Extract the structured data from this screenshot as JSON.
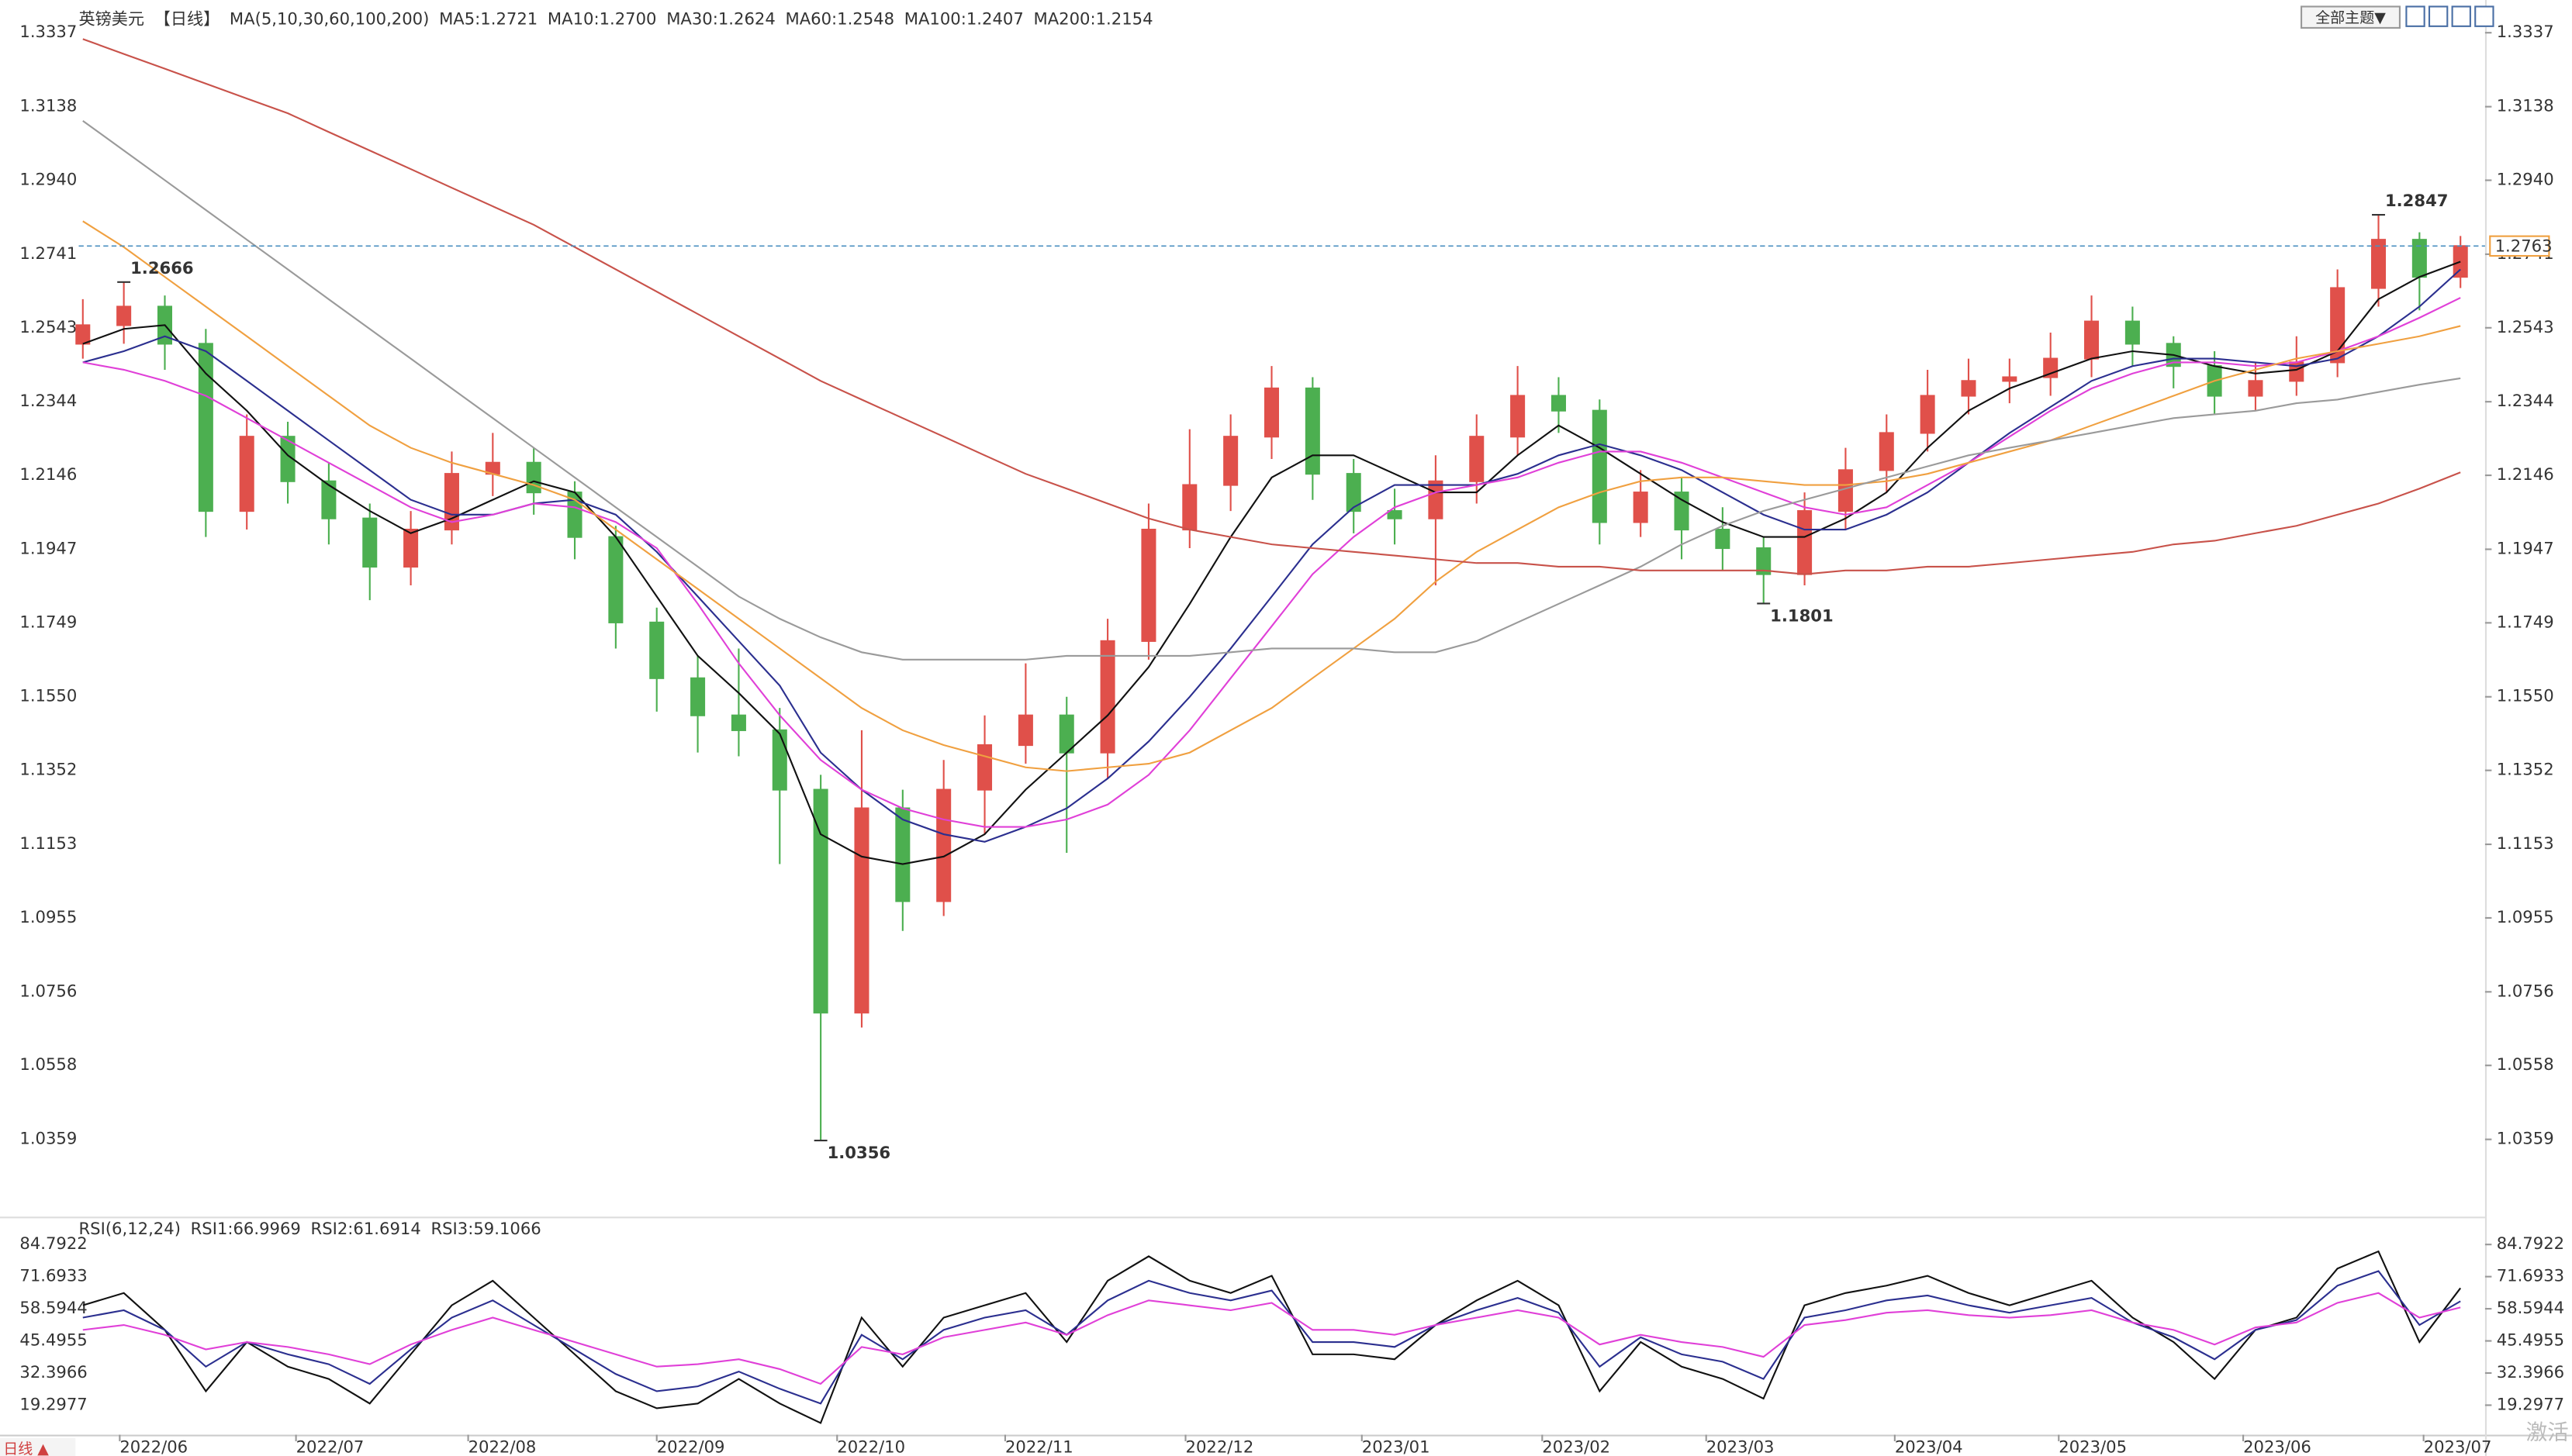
{
  "chart_data": [
    {
      "type": "candlestick",
      "title": "英镑美元",
      "subtitle": "【日线】",
      "indicator": "MA(5,10,30,60,100,200)",
      "x": [
        0,
        1,
        2,
        3,
        4,
        5,
        6,
        7,
        8,
        9,
        10,
        11,
        12,
        13,
        14,
        15,
        16,
        17,
        18,
        19,
        20,
        21,
        22,
        23,
        24,
        25,
        26,
        27,
        28,
        29,
        30,
        31,
        32,
        33,
        34,
        35,
        36,
        37,
        38,
        39,
        40,
        41,
        42,
        43,
        44,
        45,
        46,
        47,
        48,
        49,
        50,
        51,
        52,
        53,
        54,
        55,
        56,
        57,
        58
      ],
      "open": [
        1.25,
        1.255,
        1.26,
        1.25,
        1.205,
        1.225,
        1.213,
        1.203,
        1.19,
        1.2,
        1.215,
        1.218,
        1.21,
        1.198,
        1.175,
        1.16,
        1.15,
        1.146,
        1.13,
        1.07,
        1.125,
        1.1,
        1.13,
        1.142,
        1.15,
        1.14,
        1.17,
        1.2,
        1.212,
        1.225,
        1.238,
        1.215,
        1.205,
        1.203,
        1.213,
        1.225,
        1.236,
        1.232,
        1.202,
        1.21,
        1.2,
        1.195,
        1.188,
        1.205,
        1.216,
        1.226,
        1.236,
        1.24,
        1.241,
        1.246,
        1.256,
        1.25,
        1.244,
        1.236,
        1.24,
        1.245,
        1.265,
        1.278,
        1.268
      ],
      "high": [
        1.262,
        1.2666,
        1.263,
        1.254,
        1.231,
        1.229,
        1.218,
        1.207,
        1.205,
        1.221,
        1.226,
        1.222,
        1.213,
        1.201,
        1.179,
        1.166,
        1.168,
        1.152,
        1.134,
        1.146,
        1.13,
        1.138,
        1.15,
        1.164,
        1.155,
        1.176,
        1.207,
        1.227,
        1.231,
        1.244,
        1.241,
        1.219,
        1.211,
        1.22,
        1.231,
        1.244,
        1.241,
        1.235,
        1.216,
        1.214,
        1.206,
        1.198,
        1.21,
        1.222,
        1.231,
        1.243,
        1.246,
        1.246,
        1.253,
        1.263,
        1.26,
        1.252,
        1.248,
        1.245,
        1.252,
        1.27,
        1.2847,
        1.28,
        1.279
      ],
      "low": [
        1.246,
        1.25,
        1.243,
        1.198,
        1.2,
        1.207,
        1.196,
        1.181,
        1.185,
        1.196,
        1.209,
        1.204,
        1.192,
        1.168,
        1.151,
        1.14,
        1.139,
        1.11,
        1.0356,
        1.066,
        1.092,
        1.096,
        1.118,
        1.137,
        1.113,
        1.133,
        1.165,
        1.195,
        1.205,
        1.219,
        1.208,
        1.199,
        1.196,
        1.185,
        1.207,
        1.22,
        1.226,
        1.196,
        1.198,
        1.192,
        1.189,
        1.1801,
        1.185,
        1.2,
        1.21,
        1.221,
        1.231,
        1.234,
        1.236,
        1.241,
        1.244,
        1.238,
        1.231,
        1.232,
        1.236,
        1.241,
        1.26,
        1.259,
        1.265
      ],
      "close": [
        1.255,
        1.26,
        1.25,
        1.205,
        1.225,
        1.213,
        1.203,
        1.19,
        1.2,
        1.215,
        1.218,
        1.21,
        1.198,
        1.175,
        1.16,
        1.15,
        1.146,
        1.13,
        1.07,
        1.125,
        1.1,
        1.13,
        1.142,
        1.15,
        1.14,
        1.17,
        1.2,
        1.212,
        1.225,
        1.238,
        1.215,
        1.205,
        1.203,
        1.213,
        1.225,
        1.236,
        1.232,
        1.202,
        1.21,
        1.2,
        1.195,
        1.188,
        1.205,
        1.216,
        1.226,
        1.236,
        1.24,
        1.241,
        1.246,
        1.256,
        1.25,
        1.244,
        1.236,
        1.24,
        1.245,
        1.265,
        1.278,
        1.268,
        1.2763
      ],
      "up_color": "#e0504a",
      "down_color": "#4caf50",
      "series": [
        {
          "name": "MA5:1.2721",
          "color": "#111111",
          "values": [
            1.25,
            1.254,
            1.255,
            1.242,
            1.232,
            1.22,
            1.212,
            1.205,
            1.199,
            1.203,
            1.208,
            1.213,
            1.21,
            1.198,
            1.182,
            1.166,
            1.156,
            1.145,
            1.118,
            1.112,
            1.11,
            1.112,
            1.118,
            1.13,
            1.14,
            1.15,
            1.163,
            1.18,
            1.198,
            1.214,
            1.22,
            1.22,
            1.215,
            1.21,
            1.21,
            1.22,
            1.228,
            1.222,
            1.215,
            1.208,
            1.202,
            1.198,
            1.198,
            1.203,
            1.21,
            1.222,
            1.232,
            1.238,
            1.242,
            1.246,
            1.248,
            1.247,
            1.244,
            1.242,
            1.243,
            1.248,
            1.262,
            1.268,
            1.2721
          ]
        },
        {
          "name": "MA10:1.2700",
          "color": "#2b2f8f",
          "values": [
            1.245,
            1.248,
            1.252,
            1.248,
            1.24,
            1.232,
            1.224,
            1.216,
            1.208,
            1.204,
            1.204,
            1.207,
            1.208,
            1.204,
            1.194,
            1.182,
            1.17,
            1.158,
            1.14,
            1.13,
            1.122,
            1.118,
            1.116,
            1.12,
            1.125,
            1.133,
            1.143,
            1.155,
            1.168,
            1.182,
            1.196,
            1.206,
            1.212,
            1.212,
            1.212,
            1.215,
            1.22,
            1.223,
            1.22,
            1.216,
            1.21,
            1.204,
            1.2,
            1.2,
            1.204,
            1.21,
            1.218,
            1.226,
            1.233,
            1.24,
            1.244,
            1.246,
            1.246,
            1.245,
            1.244,
            1.246,
            1.252,
            1.26,
            1.27
          ]
        },
        {
          "name": "MA30:1.2624",
          "color": "#e040d8",
          "values": [
            1.245,
            1.243,
            1.24,
            1.236,
            1.23,
            1.224,
            1.218,
            1.212,
            1.206,
            1.202,
            1.204,
            1.207,
            1.206,
            1.202,
            1.195,
            1.18,
            1.164,
            1.15,
            1.138,
            1.13,
            1.125,
            1.122,
            1.12,
            1.12,
            1.122,
            1.126,
            1.134,
            1.146,
            1.16,
            1.174,
            1.188,
            1.198,
            1.206,
            1.21,
            1.212,
            1.214,
            1.218,
            1.221,
            1.221,
            1.218,
            1.214,
            1.21,
            1.206,
            1.204,
            1.206,
            1.212,
            1.218,
            1.225,
            1.232,
            1.238,
            1.242,
            1.245,
            1.245,
            1.244,
            1.245,
            1.248,
            1.252,
            1.257,
            1.2624
          ]
        },
        {
          "name": "MA60:1.2548",
          "color": "#f0a040",
          "values": [
            1.283,
            1.276,
            1.268,
            1.26,
            1.252,
            1.244,
            1.236,
            1.228,
            1.222,
            1.218,
            1.215,
            1.212,
            1.208,
            1.2,
            1.192,
            1.184,
            1.176,
            1.168,
            1.16,
            1.152,
            1.146,
            1.142,
            1.139,
            1.136,
            1.135,
            1.136,
            1.137,
            1.14,
            1.146,
            1.152,
            1.16,
            1.168,
            1.176,
            1.186,
            1.194,
            1.2,
            1.206,
            1.21,
            1.213,
            1.214,
            1.214,
            1.213,
            1.212,
            1.212,
            1.213,
            1.215,
            1.218,
            1.221,
            1.224,
            1.228,
            1.232,
            1.236,
            1.24,
            1.243,
            1.246,
            1.248,
            1.25,
            1.252,
            1.2548
          ]
        },
        {
          "name": "MA100:1.2407",
          "color": "#9a9a9a",
          "values": [
            1.31,
            1.302,
            1.294,
            1.286,
            1.278,
            1.27,
            1.262,
            1.254,
            1.246,
            1.238,
            1.23,
            1.222,
            1.214,
            1.206,
            1.198,
            1.19,
            1.182,
            1.176,
            1.171,
            1.167,
            1.165,
            1.165,
            1.165,
            1.165,
            1.166,
            1.166,
            1.166,
            1.166,
            1.167,
            1.168,
            1.168,
            1.168,
            1.167,
            1.167,
            1.17,
            1.175,
            1.18,
            1.185,
            1.19,
            1.196,
            1.201,
            1.205,
            1.208,
            1.211,
            1.214,
            1.217,
            1.22,
            1.222,
            1.224,
            1.226,
            1.228,
            1.23,
            1.231,
            1.232,
            1.234,
            1.235,
            1.237,
            1.239,
            1.2407
          ]
        },
        {
          "name": "MA200:1.2154",
          "color": "#c8524a",
          "values": [
            1.332,
            1.328,
            1.324,
            1.32,
            1.316,
            1.312,
            1.307,
            1.302,
            1.297,
            1.292,
            1.287,
            1.282,
            1.276,
            1.27,
            1.264,
            1.258,
            1.252,
            1.246,
            1.24,
            1.235,
            1.23,
            1.225,
            1.22,
            1.215,
            1.211,
            1.207,
            1.203,
            1.2,
            1.198,
            1.196,
            1.195,
            1.194,
            1.193,
            1.192,
            1.191,
            1.191,
            1.19,
            1.19,
            1.189,
            1.189,
            1.189,
            1.189,
            1.188,
            1.189,
            1.189,
            1.19,
            1.19,
            1.191,
            1.192,
            1.193,
            1.194,
            1.196,
            1.197,
            1.199,
            1.201,
            1.204,
            1.207,
            1.211,
            1.2154
          ]
        }
      ],
      "annotations": [
        {
          "x": 1,
          "value": 1.2666,
          "color": "#d04040"
        },
        {
          "x": 18,
          "value": 1.0356,
          "color": "#3f9e3f"
        },
        {
          "x": 41,
          "value": 1.1801,
          "color": "#3f9e3f"
        },
        {
          "x": 56,
          "value": 1.2847,
          "color": "#d04040"
        }
      ],
      "last_price": 1.2763,
      "xlim": [
        -0.1,
        58.6
      ],
      "ylim": [
        1.016,
        1.3403
      ],
      "yticks": [
        1.3337,
        1.3138,
        {
          "value": 1.294,
          "label": "1.2940"
        },
        1.2741,
        1.2543,
        1.2344,
        1.2146,
        1.1947,
        1.1749,
        {
          "value": 1.155,
          "label": "1.1550"
        },
        1.1352,
        1.1153,
        1.0955,
        1.0756,
        1.0558,
        1.0359
      ]
    },
    {
      "type": "line",
      "title": "RSI(6,12,24)",
      "series": [
        {
          "name": "RSI1:66.9969",
          "color": "#111111",
          "values": [
            60,
            65,
            50,
            25,
            45,
            35,
            30,
            20,
            40,
            60,
            70,
            55,
            40,
            25,
            18,
            20,
            30,
            20,
            12,
            55,
            35,
            55,
            60,
            65,
            45,
            70,
            80,
            70,
            65,
            72,
            40,
            40,
            38,
            52,
            62,
            70,
            60,
            25,
            45,
            35,
            30,
            22,
            60,
            65,
            68,
            72,
            65,
            60,
            65,
            70,
            55,
            45,
            30,
            50,
            55,
            75,
            82,
            45,
            66.9969
          ]
        },
        {
          "name": "RSI2:61.6914",
          "color": "#2b2f8f",
          "values": [
            55,
            58,
            50,
            35,
            45,
            40,
            36,
            28,
            42,
            55,
            62,
            52,
            42,
            32,
            25,
            27,
            33,
            26,
            20,
            48,
            38,
            50,
            55,
            58,
            48,
            62,
            70,
            65,
            62,
            66,
            45,
            45,
            43,
            52,
            58,
            63,
            57,
            35,
            47,
            40,
            37,
            30,
            55,
            58,
            62,
            64,
            60,
            57,
            60,
            63,
            53,
            47,
            38,
            50,
            54,
            68,
            74,
            52,
            61.6914
          ]
        },
        {
          "name": "RSI3:59.1066",
          "color": "#e040d8",
          "values": [
            50,
            52,
            48,
            42,
            45,
            43,
            40,
            36,
            44,
            50,
            55,
            50,
            45,
            40,
            35,
            36,
            38,
            34,
            28,
            43,
            40,
            47,
            50,
            53,
            48,
            56,
            62,
            60,
            58,
            61,
            50,
            50,
            48,
            52,
            55,
            58,
            55,
            44,
            48,
            45,
            43,
            39,
            52,
            54,
            57,
            58,
            56,
            55,
            56,
            58,
            53,
            50,
            44,
            51,
            53,
            61,
            65,
            55,
            59.1066
          ]
        }
      ],
      "ylim": [
        7.27,
        94.15
      ],
      "yticks": [
        84.7922,
        71.6933,
        58.5944,
        45.4955,
        32.3966,
        19.2977
      ],
      "xticks": [
        {
          "value": 0.9,
          "label": "2022/06"
        },
        {
          "value": 5.2,
          "label": "2022/07"
        },
        {
          "value": 9.4,
          "label": "2022/08"
        },
        {
          "value": 14,
          "label": "2022/09"
        },
        {
          "value": 18.4,
          "label": "2022/10"
        },
        {
          "value": 22.5,
          "label": "2022/11"
        },
        {
          "value": 26.9,
          "label": "2022/12"
        },
        {
          "value": 31.2,
          "label": "2023/01"
        },
        {
          "value": 35.6,
          "label": "2023/02"
        },
        {
          "value": 39.6,
          "label": "2023/03"
        },
        {
          "value": 44.2,
          "label": "2023/04"
        },
        {
          "value": 48.2,
          "label": "2023/05"
        },
        {
          "value": 52.7,
          "label": "2023/06"
        },
        {
          "value": 57.1,
          "label": "2023/07"
        }
      ]
    }
  ],
  "ui": {
    "theme_button": "全部主题▼",
    "period_tab": "日线 ▲",
    "watermark": "激活"
  }
}
